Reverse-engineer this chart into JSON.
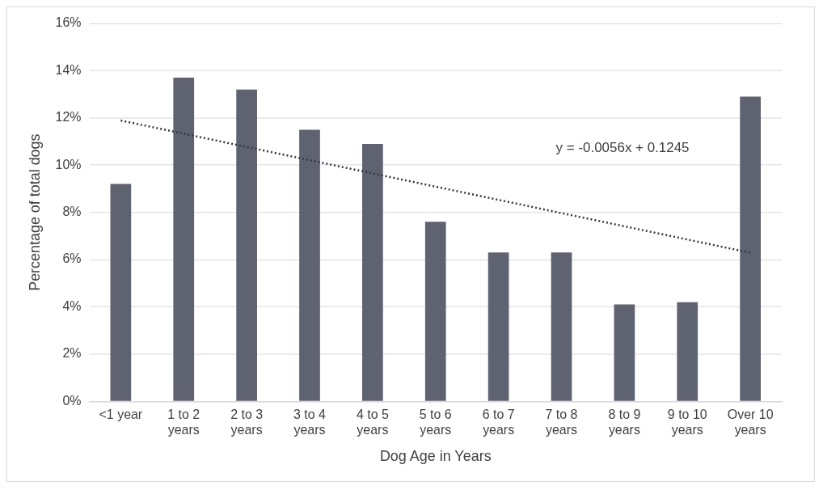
{
  "chart_data": {
    "type": "bar",
    "xlabel": "Dog Age in Years",
    "ylabel": "Percentage of total dogs",
    "categories": [
      "<1 year",
      "1 to 2 years",
      "2 to 3 years",
      "3 to 4 years",
      "4 to 5 years",
      "5 to 6 years",
      "6 to 7 years",
      "7 to 8 years",
      "8 to 9 years",
      "9 to 10 years",
      "Over 10 years"
    ],
    "series": [
      {
        "color": "#5f6270",
        "values": [
          9.2,
          13.7,
          13.2,
          11.5,
          10.9,
          7.6,
          6.3,
          6.3,
          4.1,
          4.2,
          12.9
        ]
      },
      {
        "type": "line",
        "color": "#33363f",
        "line_style": "dotted",
        "marker": "none",
        "values": [
          11.89,
          11.33,
          10.77,
          10.21,
          9.65,
          9.09,
          8.53,
          7.97,
          7.41,
          6.85,
          6.29
        ]
      }
    ],
    "ylim": [
      0,
      16
    ],
    "yticks": [
      {
        "value": 0,
        "label": "0%"
      },
      {
        "value": 2,
        "label": "2%"
      },
      {
        "value": 4,
        "label": "4%"
      },
      {
        "value": 6,
        "label": "6%"
      },
      {
        "value": 8,
        "label": "8%"
      },
      {
        "value": 10,
        "label": "10%"
      },
      {
        "value": 12,
        "label": "12%"
      },
      {
        "value": 14,
        "label": "14%"
      },
      {
        "value": 16,
        "label": "16%"
      }
    ],
    "grid": "y",
    "legend": false,
    "annotations": [
      "y = -0.0056x + 0.1245"
    ]
  }
}
